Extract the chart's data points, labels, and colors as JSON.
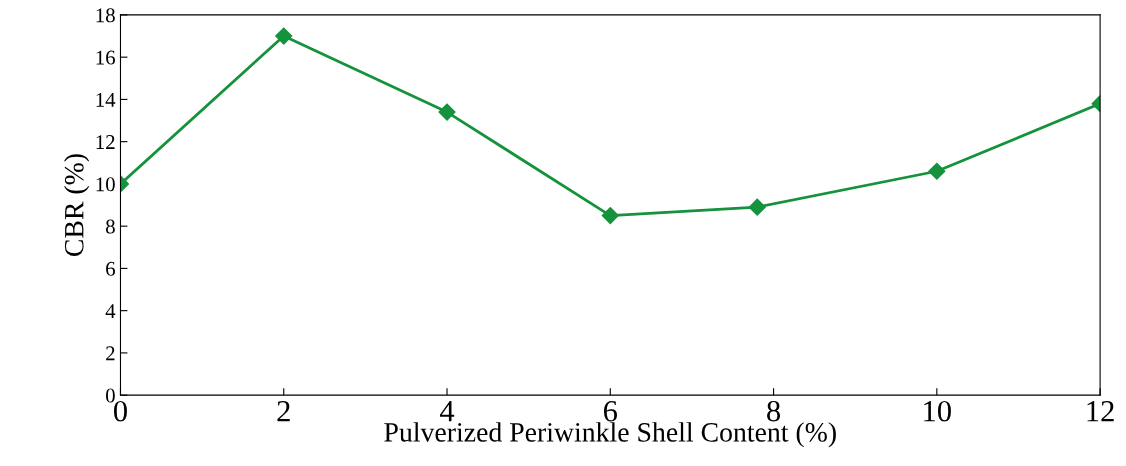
{
  "chart_data": {
    "type": "line",
    "xlabel": "Pulverized Periwinkle Shell Content (%)",
    "ylabel": "CBR (%)",
    "x": [
      0,
      2,
      4,
      6,
      7.8,
      10,
      12
    ],
    "series": [
      {
        "color": "#15923c",
        "values": [
          10,
          17,
          13.4,
          8.5,
          8.9,
          10.6,
          13.8
        ]
      }
    ],
    "xlim": [
      0,
      12
    ],
    "xticks": [
      0,
      2,
      4,
      6,
      8,
      10,
      12
    ],
    "ylim": [
      0,
      18
    ],
    "yticks": [
      0,
      2,
      4,
      6,
      8,
      10,
      12,
      14,
      16,
      18
    ],
    "marker": "diamond",
    "line_style": "solid",
    "grid": false,
    "legend": false
  }
}
